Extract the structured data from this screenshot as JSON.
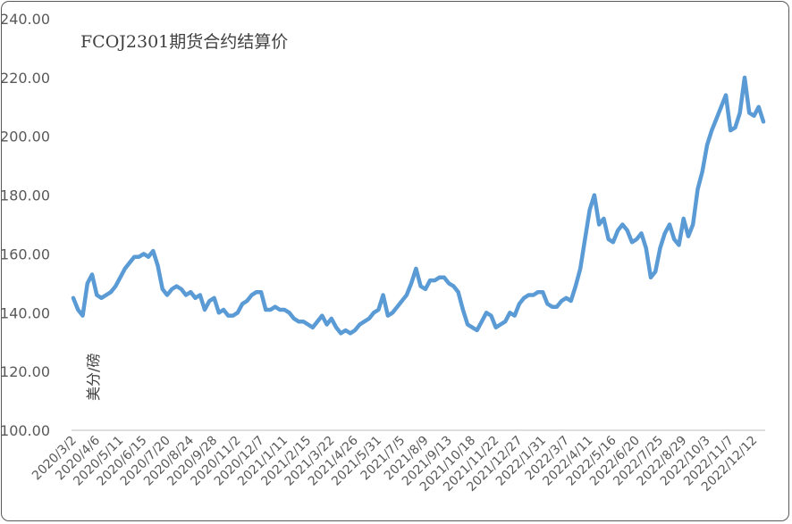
{
  "chart_data": {
    "type": "line",
    "title": "FCOJ2301期货合约结算价",
    "ylabel": "美分/磅",
    "xlabel": "",
    "ylim": [
      100,
      240
    ],
    "yticks": [
      "100.00",
      "120.00",
      "140.00",
      "160.00",
      "180.00",
      "200.00",
      "220.00",
      "240.00"
    ],
    "x_tick_labels": [
      "2020/3/2",
      "2020/4/6",
      "2020/5/11",
      "2020/6/15",
      "2020/7/20",
      "2020/8/24",
      "2020/9/28",
      "2020/11/2",
      "2020/12/7",
      "2021/1/11",
      "2021/2/15",
      "2021/3/22",
      "2021/4/26",
      "2021/5/31",
      "2021/7/5",
      "2021/8/9",
      "2021/9/13",
      "2021/10/18",
      "2021/11/22",
      "2021/12/27",
      "2022/1/31",
      "2022/3/7",
      "2022/4/11",
      "2022/5/16",
      "2022/6/20",
      "2022/7/25",
      "2022/8/29",
      "2022/10/3",
      "2022/11/7",
      "2022/12/12"
    ],
    "grid": false,
    "legend": "none",
    "line_color": "#5B9BD5",
    "series": [
      {
        "x": [
          "2020/3/2",
          "2020/3/9",
          "2020/3/16",
          "2020/3/23",
          "2020/3/30",
          "2020/4/6",
          "2020/4/13",
          "2020/4/20",
          "2020/4/27",
          "2020/5/4",
          "2020/5/11",
          "2020/5/18",
          "2020/5/25",
          "2020/6/1",
          "2020/6/8",
          "2020/6/15",
          "2020/6/22",
          "2020/6/29",
          "2020/7/6",
          "2020/7/13",
          "2020/7/20",
          "2020/7/27",
          "2020/8/3",
          "2020/8/10",
          "2020/8/17",
          "2020/8/24",
          "2020/8/31",
          "2020/9/7",
          "2020/9/14",
          "2020/9/21",
          "2020/9/28",
          "2020/10/5",
          "2020/10/12",
          "2020/10/19",
          "2020/10/26",
          "2020/11/2",
          "2020/11/9",
          "2020/11/16",
          "2020/11/23",
          "2020/11/30",
          "2020/12/7",
          "2020/12/14",
          "2020/12/21",
          "2020/12/28",
          "2021/1/4",
          "2021/1/11",
          "2021/1/18",
          "2021/1/25",
          "2021/2/1",
          "2021/2/8",
          "2021/2/15",
          "2021/2/22",
          "2021/3/1",
          "2021/3/8",
          "2021/3/15",
          "2021/3/22",
          "2021/3/29",
          "2021/4/5",
          "2021/4/12",
          "2021/4/19",
          "2021/4/26",
          "2021/5/3",
          "2021/5/10",
          "2021/5/17",
          "2021/5/24",
          "2021/5/31",
          "2021/6/7",
          "2021/6/14",
          "2021/6/21",
          "2021/6/28",
          "2021/7/5",
          "2021/7/12",
          "2021/7/19",
          "2021/7/26",
          "2021/8/2",
          "2021/8/9",
          "2021/8/16",
          "2021/8/23",
          "2021/8/30",
          "2021/9/6",
          "2021/9/13",
          "2021/9/20",
          "2021/9/27",
          "2021/10/4",
          "2021/10/11",
          "2021/10/18",
          "2021/10/25",
          "2021/11/1",
          "2021/11/8",
          "2021/11/15",
          "2021/11/22",
          "2021/11/29",
          "2021/12/6",
          "2021/12/13",
          "2021/12/20",
          "2021/12/27",
          "2022/1/3",
          "2022/1/10",
          "2022/1/17",
          "2022/1/24",
          "2022/1/31",
          "2022/2/7",
          "2022/2/14",
          "2022/2/21",
          "2022/2/28",
          "2022/3/7",
          "2022/3/14",
          "2022/3/21",
          "2022/3/28",
          "2022/4/4",
          "2022/4/11",
          "2022/4/18",
          "2022/4/25",
          "2022/5/2",
          "2022/5/9",
          "2022/5/16",
          "2022/5/23",
          "2022/5/30",
          "2022/6/6",
          "2022/6/13",
          "2022/6/20",
          "2022/6/27",
          "2022/7/4",
          "2022/7/11",
          "2022/7/18",
          "2022/7/25",
          "2022/8/1",
          "2022/8/8",
          "2022/8/15",
          "2022/8/22",
          "2022/8/29",
          "2022/9/5",
          "2022/9/12",
          "2022/9/19",
          "2022/9/26",
          "2022/10/3",
          "2022/10/10",
          "2022/10/17",
          "2022/10/24",
          "2022/10/31",
          "2022/11/7",
          "2022/11/14",
          "2022/11/21",
          "2022/11/28",
          "2022/12/5",
          "2022/12/12",
          "2022/12/19",
          "2022/12/26"
        ],
        "values": [
          145,
          141,
          139,
          150,
          153,
          146,
          145,
          146,
          147,
          149,
          152,
          155,
          157,
          159,
          159,
          160,
          159,
          161,
          156,
          148,
          146,
          148,
          149,
          148,
          146,
          147,
          145,
          146,
          141,
          144,
          145,
          140,
          141,
          139,
          139,
          140,
          143,
          144,
          146,
          147,
          147,
          141,
          141,
          142,
          141,
          141,
          140,
          138,
          137,
          137,
          136,
          135,
          137,
          139,
          136,
          138,
          135,
          133,
          134,
          133,
          134,
          136,
          137,
          138,
          140,
          141,
          146,
          139,
          140,
          142,
          144,
          146,
          150,
          155,
          149,
          148,
          151,
          151,
          152,
          152,
          150,
          149,
          147,
          141,
          136,
          135,
          134,
          137,
          140,
          139,
          135,
          136,
          137,
          140,
          139,
          143,
          145,
          146,
          146,
          147,
          147,
          143,
          142,
          142,
          144,
          145,
          144,
          149,
          155,
          165,
          175,
          180,
          170,
          172,
          165,
          164,
          168,
          170,
          168,
          164,
          165,
          167,
          162,
          152,
          154,
          162,
          167,
          170,
          165,
          163,
          172,
          166,
          170,
          182,
          188,
          197,
          202,
          206,
          210,
          214,
          202,
          203,
          208,
          220,
          208,
          207,
          210,
          205
        ]
      }
    ]
  }
}
